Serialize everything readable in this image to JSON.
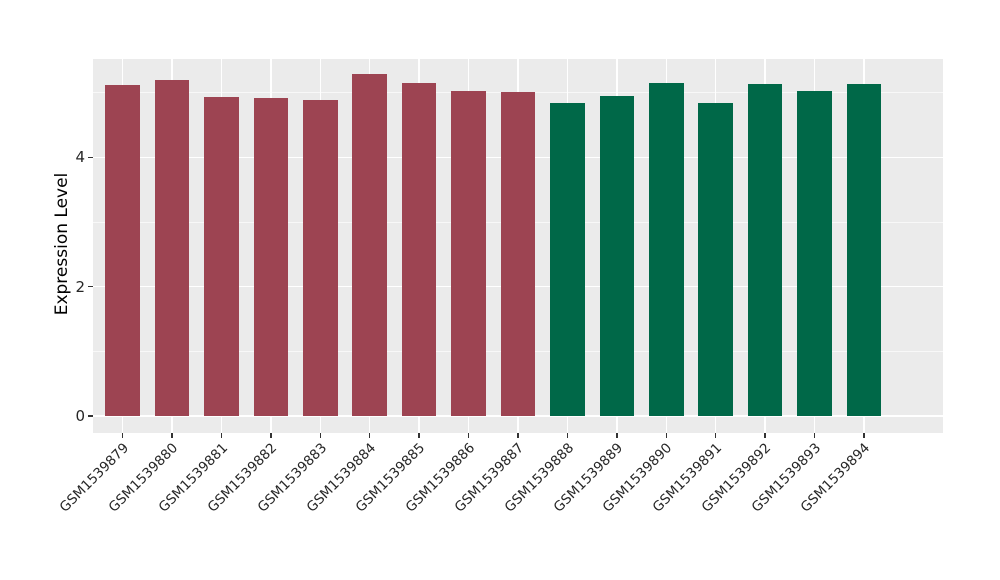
{
  "figure": {
    "title": "",
    "y_axis_title": "Expression Level"
  },
  "chart_data": {
    "type": "bar",
    "title": "",
    "xlabel": "",
    "ylabel": "Expression Level",
    "categories": [
      "GSM1539879",
      "GSM1539880",
      "GSM1539881",
      "GSM1539882",
      "GSM1539883",
      "GSM1539884",
      "GSM1539885",
      "GSM1539886",
      "GSM1539887",
      "GSM1539888",
      "GSM1539889",
      "GSM1539890",
      "GSM1539891",
      "GSM1539892",
      "GSM1539893",
      "GSM1539894"
    ],
    "values": [
      5.12,
      5.2,
      4.93,
      4.92,
      4.89,
      5.29,
      5.15,
      5.03,
      5.02,
      4.85,
      4.95,
      5.16,
      4.85,
      5.14,
      5.03,
      5.14
    ],
    "bar_colors": [
      "#9D4452",
      "#9D4452",
      "#9D4452",
      "#9D4452",
      "#9D4452",
      "#9D4452",
      "#9D4452",
      "#9D4452",
      "#9D4452",
      "#006848",
      "#006848",
      "#006848",
      "#006848",
      "#006848",
      "#006848",
      "#006848"
    ],
    "group_colors": {
      "maroon_group": "#9D4452",
      "green_group": "#006848"
    },
    "yticks": [
      0,
      2,
      4
    ],
    "ytick_labels": [
      "0",
      "2",
      "4"
    ],
    "yticks_minor": [
      1,
      3,
      5
    ],
    "ylim": [
      -0.26,
      5.53
    ],
    "bar_width_fraction": 0.7,
    "grid": "on",
    "legend": "none",
    "panel_background": "#EBEBEB",
    "grid_major_color": "#FFFFFF",
    "grid_minor_color": "rgba(255,255,255,0.65)",
    "tick_text_color": "#262626",
    "tick_mark_color": "#333333"
  }
}
